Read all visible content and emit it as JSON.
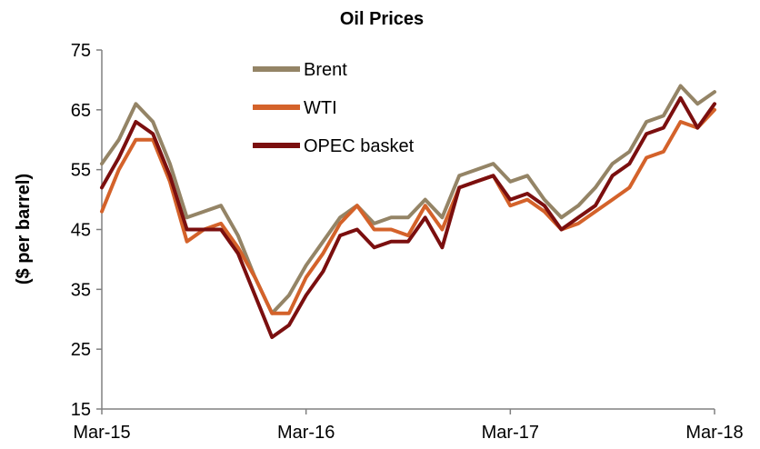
{
  "chart_data": {
    "type": "line",
    "title": "Oil Prices",
    "xlabel": "",
    "ylabel": "($ per barrel)",
    "ylim": [
      15,
      75
    ],
    "yticks": [
      "15",
      "25",
      "35",
      "45",
      "55",
      "65",
      "75"
    ],
    "xticks": [
      "Mar-15",
      "Mar-16",
      "Mar-17",
      "Mar-18"
    ],
    "grid": false,
    "legend_position": "top-center",
    "x": [
      "Mar-15",
      "Apr-15",
      "May-15",
      "Jun-15",
      "Jul-15",
      "Aug-15",
      "Sep-15",
      "Oct-15",
      "Nov-15",
      "Dec-15",
      "Jan-16",
      "Feb-16",
      "Mar-16",
      "Apr-16",
      "May-16",
      "Jun-16",
      "Jul-16",
      "Aug-16",
      "Sep-16",
      "Oct-16",
      "Nov-16",
      "Dec-16",
      "Jan-17",
      "Feb-17",
      "Mar-17",
      "Apr-17",
      "May-17",
      "Jun-17",
      "Jul-17",
      "Aug-17",
      "Sep-17",
      "Oct-17",
      "Nov-17",
      "Dec-17",
      "Jan-18",
      "Feb-18",
      "Mar-18"
    ],
    "series": [
      {
        "name": "Brent",
        "color": "#948466",
        "values": [
          56,
          60,
          66,
          63,
          56,
          47,
          48,
          49,
          44,
          37,
          31,
          34,
          39,
          43,
          47,
          49,
          46,
          47,
          47,
          50,
          47,
          54,
          55,
          56,
          53,
          54,
          50,
          47,
          49,
          52,
          56,
          58,
          63,
          64,
          69,
          66,
          68
        ]
      },
      {
        "name": "WTI",
        "color": "#d4622a",
        "values": [
          48,
          55,
          60,
          60,
          53,
          43,
          45,
          46,
          42,
          37,
          31,
          31,
          37,
          41,
          46,
          49,
          45,
          45,
          44,
          49,
          45,
          52,
          53,
          54,
          49,
          50,
          48,
          45,
          46,
          48,
          50,
          52,
          57,
          58,
          63,
          62,
          65
        ]
      },
      {
        "name": "OPEC basket",
        "color": "#7b0f0f",
        "values": [
          52,
          57,
          63,
          61,
          54,
          45,
          45,
          45,
          41,
          34,
          27,
          29,
          34,
          38,
          44,
          45,
          42,
          43,
          43,
          47,
          42,
          52,
          53,
          54,
          50,
          51,
          49,
          45,
          47,
          49,
          54,
          56,
          61,
          62,
          67,
          62,
          66
        ]
      }
    ]
  }
}
